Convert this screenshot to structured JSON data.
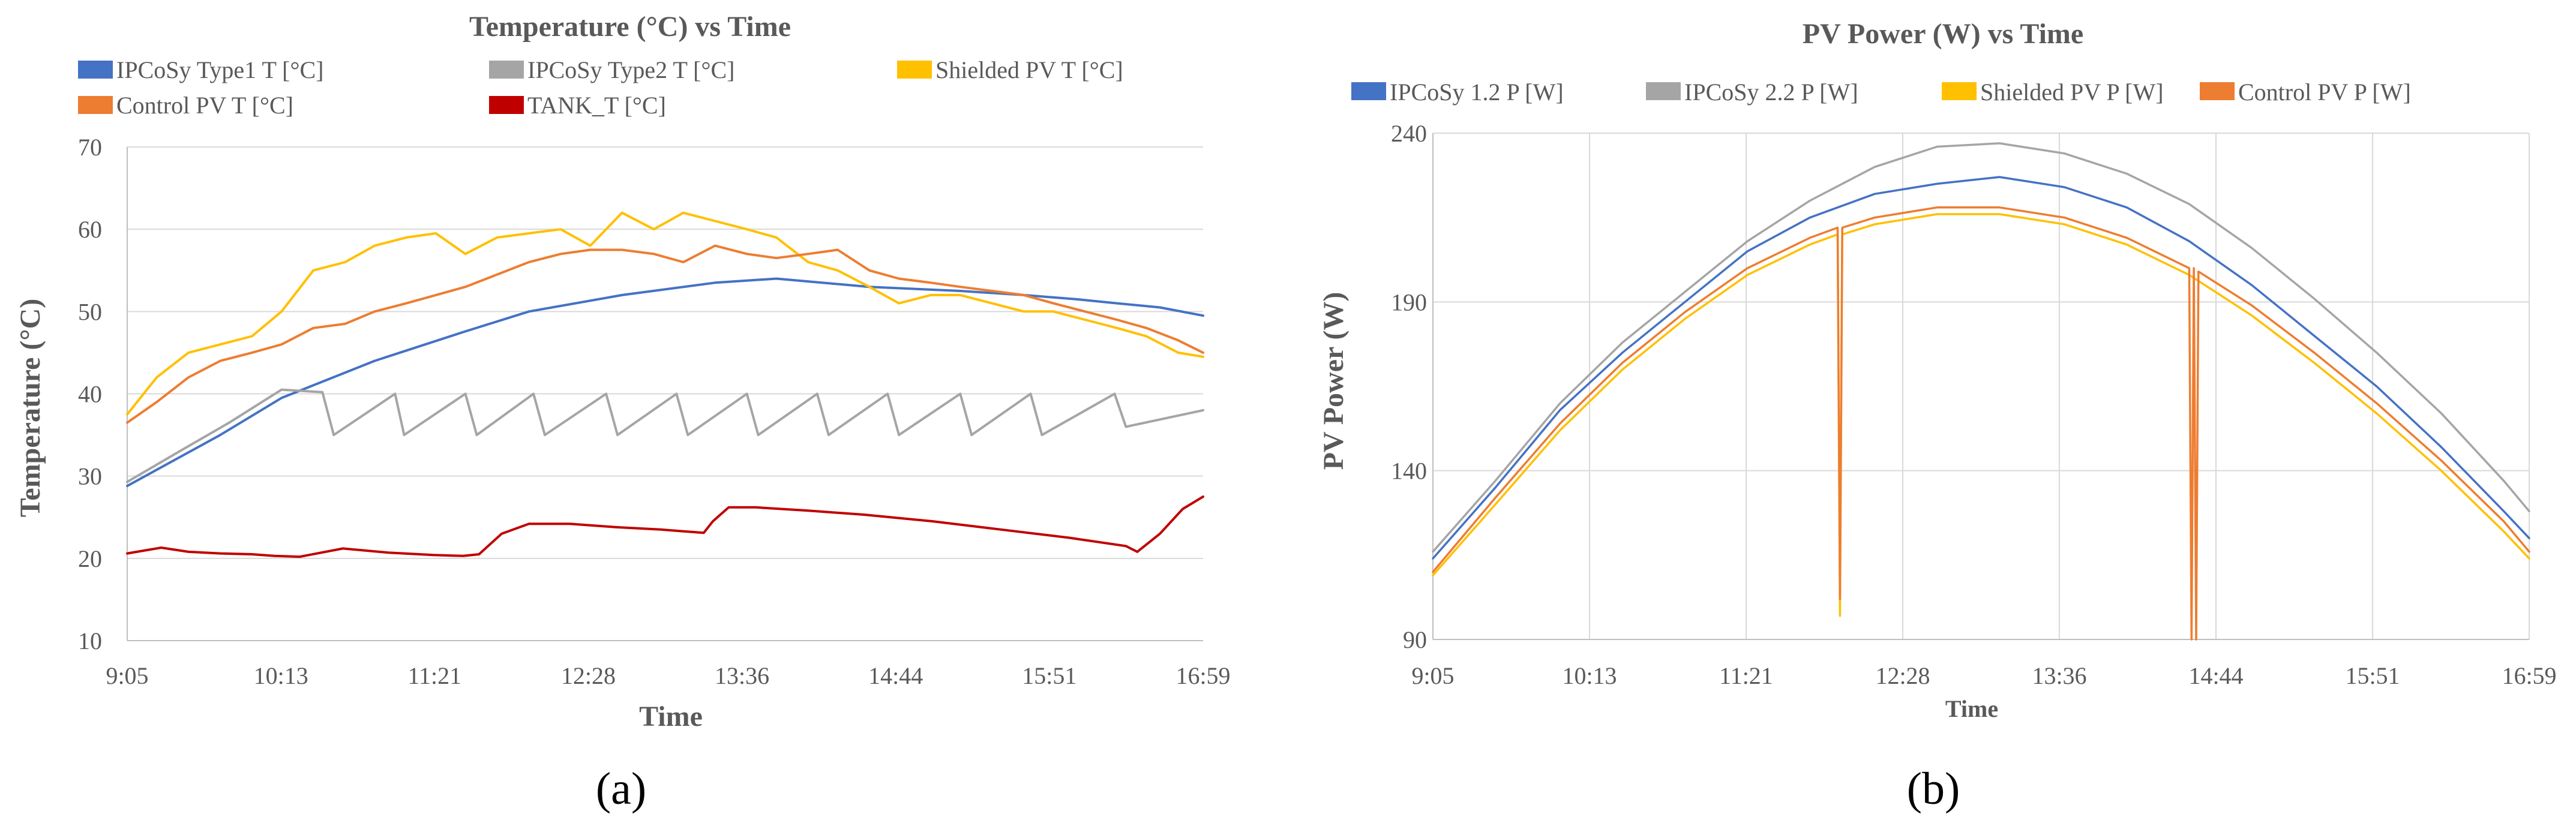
{
  "chart_data": [
    {
      "type": "line",
      "panel_label": "(a)",
      "title": "Temperature (°C) vs Time",
      "xlabel": "Time",
      "ylabel": "Temperature (°C)",
      "x_ticks": [
        "9:05",
        "10:13",
        "11:21",
        "12:28",
        "13:36",
        "14:44",
        "15:51",
        "16:59"
      ],
      "x_range_minutes": [
        545,
        1019
      ],
      "ylim": [
        10,
        70
      ],
      "y_ticks": [
        10,
        20,
        30,
        40,
        50,
        60,
        70
      ],
      "grid": "horizontal",
      "legend_position": "top",
      "series": [
        {
          "name": "IPCoSy Type1 T [°C]",
          "color": "#4472C4",
          "x": [
            545,
            586,
            613,
            654,
            693,
            722,
            763,
            804,
            831,
            872,
            912,
            940,
            963,
            981,
            1000,
            1019
          ],
          "y": [
            28.8,
            35,
            39.5,
            44,
            47.5,
            50,
            52,
            53.5,
            54,
            53,
            52.5,
            52,
            51.5,
            51,
            50.5,
            49.5
          ]
        },
        {
          "name": "IPCoSy Type2 T [°C]",
          "color": "#A5A5A5",
          "x": [
            545,
            568,
            590,
            613,
            631,
            636,
            663,
            667,
            694,
            699,
            724,
            729,
            756,
            761,
            787,
            792,
            818,
            823,
            849,
            854,
            880,
            885,
            912,
            917,
            943,
            948,
            980,
            985,
            1019
          ],
          "y": [
            29.3,
            33,
            36.5,
            40.5,
            40.2,
            35,
            40,
            35,
            40,
            35,
            40,
            35,
            40,
            35,
            40,
            35,
            40,
            35,
            40,
            35,
            40,
            35,
            40,
            35,
            40,
            35,
            40,
            36,
            38
          ]
        },
        {
          "name": "Shielded PV T [°C]",
          "color": "#FFC000",
          "x": [
            545,
            558,
            572,
            586,
            600,
            613,
            627,
            641,
            654,
            668,
            681,
            694,
            708,
            722,
            736,
            749,
            763,
            777,
            790,
            804,
            818,
            831,
            845,
            858,
            872,
            885,
            899,
            912,
            926,
            940,
            953,
            967,
            981,
            994,
            1008,
            1019
          ],
          "y": [
            37.5,
            42,
            45,
            46,
            47,
            50,
            55,
            56,
            58,
            59,
            59.5,
            57,
            59,
            59.5,
            60,
            58,
            62,
            60,
            62,
            61,
            60,
            59,
            56,
            55,
            53,
            51,
            52,
            52,
            51,
            50,
            50,
            49,
            48,
            47,
            45,
            44.5
          ]
        },
        {
          "name": "Control PV T [°C]",
          "color": "#ED7D31",
          "x": [
            545,
            558,
            572,
            586,
            600,
            613,
            627,
            641,
            654,
            668,
            681,
            694,
            708,
            722,
            736,
            749,
            763,
            777,
            790,
            804,
            818,
            831,
            845,
            858,
            872,
            885,
            899,
            912,
            926,
            940,
            953,
            967,
            981,
            994,
            1008,
            1019
          ],
          "y": [
            36.5,
            39,
            42,
            44,
            45,
            46,
            48,
            48.5,
            50,
            51,
            52,
            53,
            54.5,
            56,
            57,
            57.5,
            57.5,
            57,
            56,
            58,
            57,
            56.5,
            57,
            57.5,
            55,
            54,
            53.5,
            53,
            52.5,
            52,
            51,
            50,
            49,
            48,
            46.5,
            45
          ]
        },
        {
          "name": "TANK_T [°C]",
          "color": "#C00000",
          "x": [
            545,
            560,
            572,
            586,
            600,
            610,
            621,
            640,
            660,
            680,
            693,
            700,
            710,
            722,
            740,
            760,
            780,
            799,
            803,
            810,
            822,
            845,
            870,
            900,
            930,
            960,
            985,
            990,
            1000,
            1010,
            1019
          ],
          "y": [
            20.6,
            21.3,
            20.8,
            20.6,
            20.5,
            20.3,
            20.2,
            21.2,
            20.7,
            20.4,
            20.3,
            20.5,
            23,
            24.2,
            24.2,
            23.8,
            23.5,
            23.1,
            24.5,
            26.2,
            26.2,
            25.8,
            25.3,
            24.5,
            23.5,
            22.5,
            21.5,
            20.8,
            23,
            26,
            27.5
          ]
        }
      ]
    },
    {
      "type": "line",
      "panel_label": "(b)",
      "title": "PV Power (W) vs Time",
      "xlabel": "Time",
      "ylabel": "PV Power (W)",
      "x_ticks": [
        "9:05",
        "10:13",
        "11:21",
        "12:28",
        "13:36",
        "14:44",
        "15:51",
        "16:59"
      ],
      "x_range_minutes": [
        545,
        1019
      ],
      "ylim": [
        90,
        240
      ],
      "y_ticks": [
        90,
        140,
        190,
        240
      ],
      "grid": "horizontal and vertical",
      "legend_position": "top",
      "series": [
        {
          "name": "IPCoSy 1.2 P [W]",
          "color": "#4472C4",
          "x": [
            545,
            572,
            600,
            627,
            654,
            681,
            708,
            736,
            763,
            790,
            818,
            845,
            872,
            899,
            926,
            953,
            981,
            1008,
            1019
          ],
          "y": [
            114,
            135,
            158,
            175,
            190,
            205,
            215,
            222,
            225,
            227,
            224,
            218,
            208,
            195,
            180,
            165,
            147,
            128,
            120
          ]
        },
        {
          "name": "IPCoSy 2.2 P [W]",
          "color": "#A5A5A5",
          "x": [
            545,
            572,
            600,
            627,
            654,
            681,
            708,
            736,
            763,
            790,
            818,
            845,
            872,
            899,
            926,
            953,
            981,
            1008,
            1019
          ],
          "y": [
            116,
            137,
            160,
            178,
            193,
            208,
            220,
            230,
            236,
            237,
            234,
            228,
            219,
            206,
            191,
            175,
            157,
            137,
            128
          ]
        },
        {
          "name": "Shielded PV P [W]",
          "color": "#FFC000",
          "x": [
            545,
            572,
            600,
            627,
            654,
            681,
            708,
            720,
            721,
            722,
            736,
            763,
            790,
            818,
            845,
            872,
            899,
            926,
            953,
            981,
            1008,
            1019
          ],
          "y": [
            109,
            130,
            152,
            170,
            185,
            198,
            207,
            210,
            97,
            210,
            213,
            216,
            216,
            213,
            207,
            198,
            186,
            172,
            157,
            140,
            122,
            114
          ]
        },
        {
          "name": "Control PV P [W]",
          "color": "#ED7D31",
          "x": [
            545,
            572,
            600,
            627,
            654,
            681,
            708,
            720,
            721,
            722,
            736,
            763,
            790,
            818,
            845,
            872,
            873,
            874,
            875,
            876,
            899,
            926,
            953,
            981,
            1008,
            1019
          ],
          "y": [
            110,
            132,
            154,
            172,
            187,
            200,
            209,
            212,
            102,
            212,
            215,
            218,
            218,
            215,
            209,
            200,
            90,
            200,
            90,
            199,
            189,
            175,
            160,
            143,
            125,
            116
          ]
        }
      ]
    }
  ]
}
